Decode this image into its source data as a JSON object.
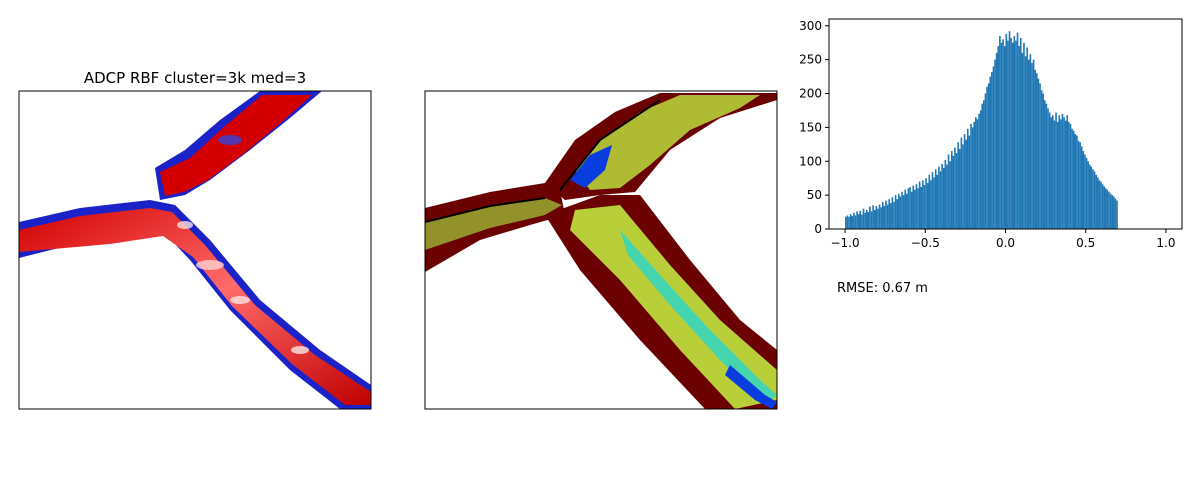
{
  "figure": {
    "map_left_title": "ADCP RBF cluster=3k med=3",
    "rmse_text": "RMSE: 0.67 m"
  },
  "colors": {
    "bar": "#1f77b4",
    "red_map": "#cc0000",
    "blue_map": "#1a22c8",
    "bathy_dark": "#5a0000",
    "bathy_mid": "#b8cf3a",
    "bathy_cyan": "#2fd6c4",
    "bathy_blue": "#0a3de0"
  },
  "chart_data": {
    "type": "bar",
    "title": "",
    "xlabel": "",
    "ylabel": "",
    "xlim": [
      -1.1,
      1.1
    ],
    "ylim": [
      0,
      310
    ],
    "xticks": [
      -1.0,
      -0.5,
      0.0,
      0.5,
      1.0
    ],
    "xtick_labels": [
      "−1.0",
      "−0.5",
      "0.0",
      "0.5",
      "1.0"
    ],
    "yticks": [
      0,
      50,
      100,
      150,
      200,
      250,
      300
    ],
    "ytick_labels": [
      "0",
      "50",
      "100",
      "150",
      "200",
      "250",
      "300"
    ],
    "bin_start": -1.0,
    "bin_width": 0.01,
    "values": [
      18,
      20,
      18,
      22,
      19,
      24,
      20,
      26,
      22,
      27,
      21,
      30,
      24,
      28,
      25,
      33,
      26,
      35,
      28,
      34,
      30,
      36,
      32,
      40,
      34,
      42,
      36,
      44,
      38,
      47,
      40,
      50,
      44,
      52,
      48,
      55,
      50,
      58,
      52,
      60,
      62,
      55,
      64,
      58,
      66,
      60,
      70,
      62,
      72,
      65,
      75,
      68,
      80,
      72,
      84,
      76,
      88,
      80,
      92,
      85,
      96,
      90,
      102,
      95,
      110,
      100,
      115,
      108,
      120,
      112,
      128,
      118,
      135,
      125,
      140,
      132,
      148,
      138,
      155,
      150,
      158,
      165,
      162,
      170,
      175,
      185,
      190,
      200,
      210,
      215,
      225,
      232,
      240,
      250,
      260,
      270,
      285,
      275,
      280,
      270,
      288,
      278,
      292,
      282,
      275,
      285,
      278,
      290,
      270,
      282,
      260,
      275,
      255,
      268,
      250,
      258,
      245,
      250,
      235,
      230,
      222,
      215,
      205,
      200,
      190,
      185,
      178,
      172,
      165,
      168,
      160,
      172,
      158,
      168,
      162,
      170,
      165,
      160,
      168,
      158,
      155,
      148,
      145,
      140,
      138,
      130,
      128,
      122,
      115,
      110,
      105,
      100,
      95,
      92,
      88,
      85,
      80,
      76,
      72,
      70,
      66,
      63,
      60,
      58,
      55,
      52,
      50,
      48,
      45,
      42
    ]
  }
}
